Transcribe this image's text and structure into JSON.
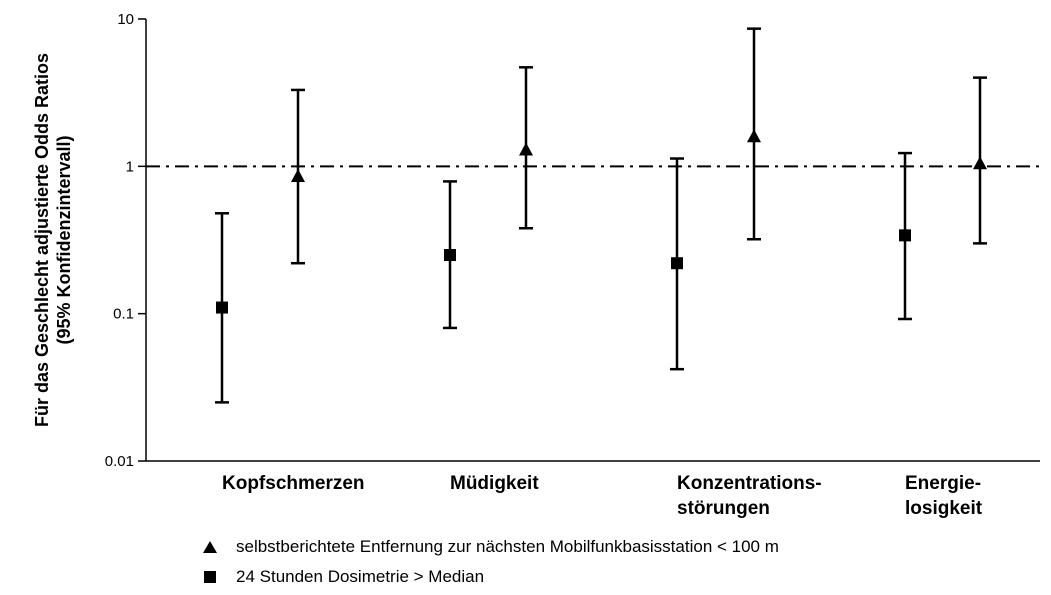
{
  "chart_data": {
    "type": "scatter",
    "subtype": "error-bar",
    "ylabel_line1": "Für das Geschlecht adjustierte Odds Ratios",
    "ylabel_line2": "(95% Konfidenzintervall)",
    "yscale": "log",
    "ylim": [
      0.01,
      10
    ],
    "yticks": [
      {
        "value": 10,
        "label": "10"
      },
      {
        "value": 1,
        "label": "1"
      },
      {
        "value": 0.1,
        "label": "0.1"
      },
      {
        "value": 0.01,
        "label": "0.01"
      }
    ],
    "reference_line": {
      "value": 1,
      "style": "dash-dot"
    },
    "categories": [
      {
        "lines": [
          "Kopfschmerzen"
        ]
      },
      {
        "lines": [
          "Müdigkeit"
        ]
      },
      {
        "lines": [
          "Konzentrations-",
          "störungen"
        ]
      },
      {
        "lines": [
          "Energie-",
          "losigkeit"
        ]
      }
    ],
    "series": [
      {
        "name": "24 Stunden Dosimetrie > Median",
        "marker": "square",
        "points": [
          {
            "estimate": 0.11,
            "lower": 0.025,
            "upper": 0.48
          },
          {
            "estimate": 0.25,
            "lower": 0.08,
            "upper": 0.79
          },
          {
            "estimate": 0.22,
            "lower": 0.042,
            "upper": 1.13
          },
          {
            "estimate": 0.34,
            "lower": 0.092,
            "upper": 1.23
          }
        ]
      },
      {
        "name": "selbstberichtete Entfernung zur nächsten Mobilfunkbasisstation < 100 m",
        "marker": "triangle",
        "points": [
          {
            "estimate": 0.86,
            "lower": 0.22,
            "upper": 3.3
          },
          {
            "estimate": 1.3,
            "lower": 0.38,
            "upper": 4.7
          },
          {
            "estimate": 1.6,
            "lower": 0.32,
            "upper": 8.6
          },
          {
            "estimate": 1.05,
            "lower": 0.3,
            "upper": 4.0
          }
        ]
      }
    ],
    "legend": [
      {
        "marker": "triangle",
        "label": "selbstberichtete Entfernung zur nächsten Mobilfunkbasisstation < 100 m"
      },
      {
        "marker": "square",
        "label": "24 Stunden Dosimetrie > Median"
      }
    ],
    "legend_position": "bottom",
    "grid": false
  }
}
